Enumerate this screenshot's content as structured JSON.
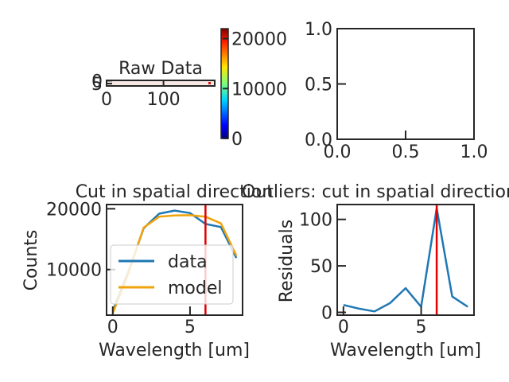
{
  "colors": {
    "data": "#1f77b4",
    "model": "#f0a30a",
    "marker": "#e00000",
    "axes": "#262626"
  },
  "chart_data": [
    {
      "type": "heatmap",
      "title": "Raw Data",
      "xlabel": "",
      "ylabel": "",
      "xlim": [
        0,
        190
      ],
      "ylim": [
        9,
        -0.5
      ],
      "xticks": [
        0,
        100
      ],
      "yticks": [
        0,
        5
      ],
      "colormap": "jet",
      "colorbar": {
        "min": 0,
        "max": 22000,
        "ticks": [
          0,
          10000,
          20000
        ]
      }
    },
    {
      "type": "line",
      "title": "",
      "xlabel": "",
      "ylabel": "",
      "xlim": [
        0,
        1
      ],
      "ylim": [
        0,
        1
      ],
      "xticks": [
        "0.0",
        "0.5",
        "1.0"
      ],
      "yticks": [
        "0.0",
        "0.5",
        "1.0"
      ],
      "series": []
    },
    {
      "type": "line",
      "title": "Cut in spatial direction",
      "xlabel": "Wavelength [um]",
      "ylabel": "Counts",
      "xlim": [
        -0.4,
        8.4
      ],
      "ylim": [
        2500,
        20700
      ],
      "xticks": [
        0,
        5
      ],
      "yticks": [
        10000,
        20000
      ],
      "x": [
        0,
        1,
        2,
        3,
        4,
        5,
        6,
        7,
        8
      ],
      "series": [
        {
          "name": "data",
          "values": [
            3200,
            9500,
            16800,
            19200,
            19700,
            19300,
            17500,
            17000,
            11900
          ]
        },
        {
          "name": "model",
          "values": [
            2800,
            9300,
            16900,
            18700,
            18900,
            18950,
            18700,
            17600,
            12300
          ]
        }
      ],
      "vline": 6,
      "legend": "lower-left"
    },
    {
      "type": "line",
      "title": "Outliers: cut in spatial direction",
      "xlabel": "Wavelength [um]",
      "ylabel": "Residuals",
      "xlim": [
        -0.4,
        8.4
      ],
      "ylim": [
        -3,
        116
      ],
      "xticks": [
        0,
        5
      ],
      "yticks": [
        0,
        50,
        100
      ],
      "x": [
        0,
        1,
        2,
        3,
        4,
        5,
        6,
        7,
        8
      ],
      "series": [
        {
          "values": [
            8,
            4,
            1,
            10,
            26,
            6,
            112,
            17,
            6
          ]
        }
      ],
      "vline": 6
    }
  ]
}
